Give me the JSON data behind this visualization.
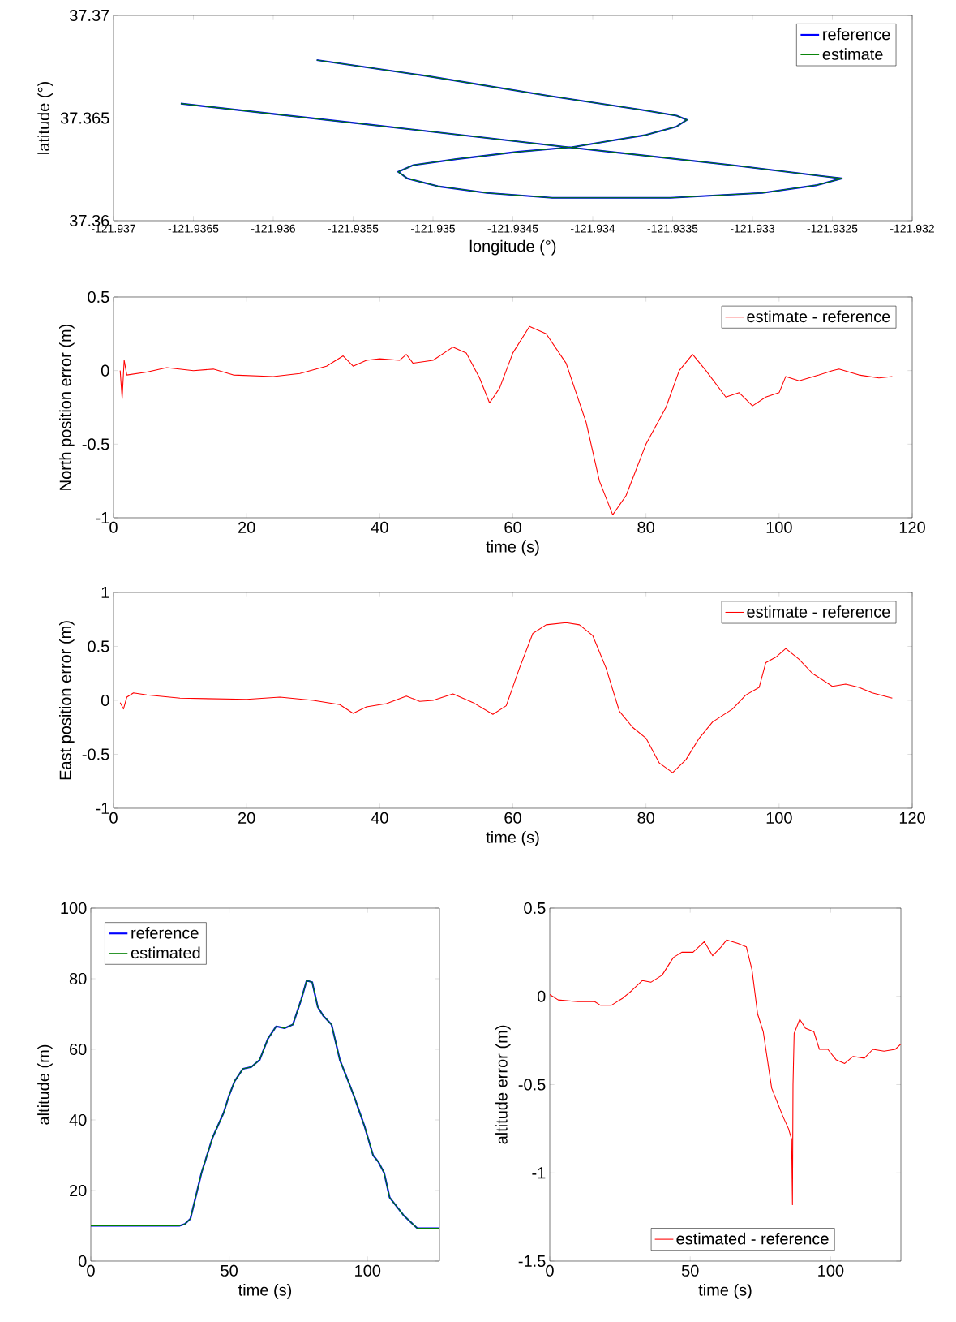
{
  "chart_data": [
    {
      "type": "line",
      "xlabel": "longitude (°)",
      "ylabel": "latitude (°)",
      "xlim": [
        -121.937,
        -121.932
      ],
      "ylim": [
        37.36,
        37.37
      ],
      "xticks": [
        -121.937,
        -121.9365,
        -121.936,
        -121.9355,
        -121.935,
        -121.9345,
        -121.934,
        -121.9335,
        -121.933,
        -121.9325,
        -121.932
      ],
      "yticks": [
        37.36,
        37.365,
        37.37
      ],
      "legend": "top right",
      "x": [
        -121.935728,
        -121.935046,
        -121.93428,
        -121.933705,
        -121.933475,
        -121.93341,
        -121.933475,
        -121.933667,
        -121.933897,
        -121.934127,
        -121.934471,
        -121.934854,
        -121.935123,
        -121.935218,
        -121.935161,
        -121.934969,
        -121.934663,
        -121.934253,
        -121.933513,
        -121.932939,
        -121.932594,
        -121.932441,
        -121.93313,
        -121.934127,
        -121.935429,
        -121.936579
      ],
      "series": [
        {
          "name": "reference",
          "color": "#0000ff",
          "values": [
            37.367824,
            37.367059,
            37.366088,
            37.365412,
            37.365118,
            37.364912,
            37.364588,
            37.364176,
            37.363882,
            37.363588,
            37.363353,
            37.363,
            37.362706,
            37.362382,
            37.362059,
            37.361676,
            37.361353,
            37.361118,
            37.361118,
            37.361353,
            37.361735,
            37.362059,
            37.362706,
            37.363559,
            37.364706,
            37.365706
          ]
        },
        {
          "name": "estimate",
          "color": "#008000",
          "values": [
            37.367824,
            37.367059,
            37.366088,
            37.365412,
            37.365118,
            37.364912,
            37.364588,
            37.364176,
            37.363882,
            37.363588,
            37.363353,
            37.363,
            37.362706,
            37.362382,
            37.362059,
            37.361676,
            37.361353,
            37.361118,
            37.361118,
            37.361353,
            37.361735,
            37.362059,
            37.362706,
            37.363559,
            37.364706,
            37.365706
          ]
        }
      ]
    },
    {
      "type": "line",
      "xlabel": "time (s)",
      "ylabel": "North position error (m)",
      "xlim": [
        0,
        120
      ],
      "ylim": [
        -1,
        0.5
      ],
      "xticks": [
        0,
        20,
        40,
        60,
        80,
        100,
        120
      ],
      "yticks": [
        -1,
        -0.5,
        0,
        0.5
      ],
      "legend": "top right",
      "x": [
        1,
        1.3,
        1.6,
        2,
        5,
        8,
        12,
        15,
        18,
        24,
        28,
        32,
        34.5,
        36,
        38,
        40,
        43,
        44,
        45,
        48,
        51,
        53,
        55,
        56.5,
        58,
        60,
        62.5,
        65,
        68,
        71,
        73,
        75,
        77,
        80,
        83,
        85,
        87,
        89,
        92,
        94,
        96,
        98,
        100,
        101,
        103,
        106,
        108,
        109,
        112,
        115,
        117
      ],
      "series": [
        {
          "name": "estimate - reference",
          "color": "#ff0000",
          "values": [
            0,
            -0.19,
            0.07,
            -0.03,
            -0.01,
            0.02,
            0,
            0.01,
            -0.03,
            -0.04,
            -0.02,
            0.03,
            0.1,
            0.03,
            0.07,
            0.08,
            0.07,
            0.11,
            0.05,
            0.07,
            0.16,
            0.12,
            -0.05,
            -0.22,
            -0.12,
            0.12,
            0.3,
            0.25,
            0.05,
            -0.35,
            -0.75,
            -0.98,
            -0.85,
            -0.5,
            -0.25,
            0,
            0.11,
            0,
            -0.18,
            -0.15,
            -0.24,
            -0.18,
            -0.15,
            -0.04,
            -0.07,
            -0.03,
            0,
            0.01,
            -0.03,
            -0.05,
            -0.04
          ]
        }
      ]
    },
    {
      "type": "line",
      "xlabel": "time (s)",
      "ylabel": "East position error (m)",
      "xlim": [
        0,
        120
      ],
      "ylim": [
        -1,
        1
      ],
      "xticks": [
        0,
        20,
        40,
        60,
        80,
        100,
        120
      ],
      "yticks": [
        -1,
        -0.5,
        0,
        0.5,
        1
      ],
      "legend": "top right",
      "x": [
        1,
        1.5,
        2,
        3,
        5,
        10,
        20,
        25,
        30,
        34,
        36,
        38,
        41,
        44,
        46,
        48,
        51,
        54,
        57,
        59,
        61,
        63,
        65,
        68,
        70,
        72,
        74,
        76,
        78,
        80,
        82,
        84,
        86,
        88,
        90,
        93,
        95,
        97,
        98,
        99.5,
        101,
        103,
        105,
        108,
        110,
        112,
        114,
        117
      ],
      "series": [
        {
          "name": "estimate - reference",
          "color": "#ff0000",
          "values": [
            -0.02,
            -0.08,
            0.03,
            0.07,
            0.05,
            0.02,
            0.01,
            0.03,
            0,
            -0.04,
            -0.12,
            -0.06,
            -0.03,
            0.04,
            -0.01,
            0,
            0.06,
            -0.02,
            -0.13,
            -0.05,
            0.3,
            0.62,
            0.7,
            0.72,
            0.7,
            0.6,
            0.3,
            -0.1,
            -0.25,
            -0.35,
            -0.58,
            -0.67,
            -0.55,
            -0.35,
            -0.2,
            -0.08,
            0.05,
            0.12,
            0.35,
            0.4,
            0.48,
            0.38,
            0.25,
            0.13,
            0.15,
            0.12,
            0.07,
            0.02
          ]
        }
      ]
    },
    {
      "type": "line",
      "xlabel": "time (s)",
      "ylabel": "altitude (m)",
      "xlim": [
        0,
        126
      ],
      "ylim": [
        0,
        100
      ],
      "xticks": [
        0,
        50,
        100
      ],
      "yticks": [
        0,
        20,
        40,
        60,
        80,
        100
      ],
      "legend": "top left",
      "x": [
        0,
        32,
        34,
        36,
        40,
        44,
        48,
        50,
        52,
        55,
        58,
        61,
        64,
        67,
        70,
        73,
        76,
        78,
        80,
        82,
        84,
        87,
        90,
        92,
        95,
        99,
        102,
        104,
        106,
        108,
        110,
        113,
        117,
        118,
        126
      ],
      "series": [
        {
          "name": "reference",
          "color": "#0000ff",
          "values": [
            10,
            10,
            10.5,
            12,
            25,
            35,
            42,
            47,
            51,
            54.5,
            55,
            57,
            63,
            66.5,
            66,
            67,
            74,
            79.5,
            79,
            72,
            69.5,
            67,
            57,
            53,
            47,
            38,
            30,
            28,
            25,
            18,
            16,
            13,
            10,
            9.3,
            9.3
          ]
        },
        {
          "name": "estimated",
          "color": "#008000",
          "values": [
            10,
            10,
            10.5,
            12,
            25,
            35,
            42,
            47,
            51,
            54.5,
            55,
            57,
            63,
            66.5,
            66,
            67,
            74,
            79.5,
            79,
            72,
            69.5,
            67,
            57,
            53,
            47,
            38,
            30,
            28,
            25,
            18,
            16,
            13,
            10,
            9.3,
            9.3
          ]
        }
      ]
    },
    {
      "type": "line",
      "xlabel": "time (s)",
      "ylabel": "altitude error (m)",
      "xlim": [
        0,
        125
      ],
      "ylim": [
        -1.5,
        0.5
      ],
      "xticks": [
        0,
        50,
        100
      ],
      "yticks": [
        -1.5,
        -1,
        -0.5,
        0,
        0.5
      ],
      "legend": "bottom",
      "x": [
        0,
        3,
        10,
        16,
        18,
        22,
        26,
        29,
        33,
        36,
        40,
        44,
        47,
        51,
        55,
        58,
        61,
        63,
        67,
        70,
        72,
        74,
        76,
        79,
        83,
        85,
        86.1,
        86.4,
        86.6,
        87,
        89,
        91,
        94,
        96,
        99,
        102,
        105,
        108,
        112,
        115,
        119,
        123,
        125
      ],
      "series": [
        {
          "name": "estimated - reference",
          "color": "#ff0000",
          "values": [
            0.01,
            -0.02,
            -0.03,
            -0.03,
            -0.05,
            -0.05,
            -0.01,
            0.03,
            0.09,
            0.08,
            0.12,
            0.22,
            0.25,
            0.25,
            0.31,
            0.23,
            0.28,
            0.32,
            0.3,
            0.28,
            0.15,
            -0.1,
            -0.2,
            -0.52,
            -0.68,
            -0.75,
            -0.81,
            -1.18,
            -0.5,
            -0.21,
            -0.13,
            -0.18,
            -0.2,
            -0.3,
            -0.3,
            -0.36,
            -0.38,
            -0.34,
            -0.35,
            -0.3,
            -0.31,
            -0.3,
            -0.27
          ]
        }
      ]
    }
  ]
}
